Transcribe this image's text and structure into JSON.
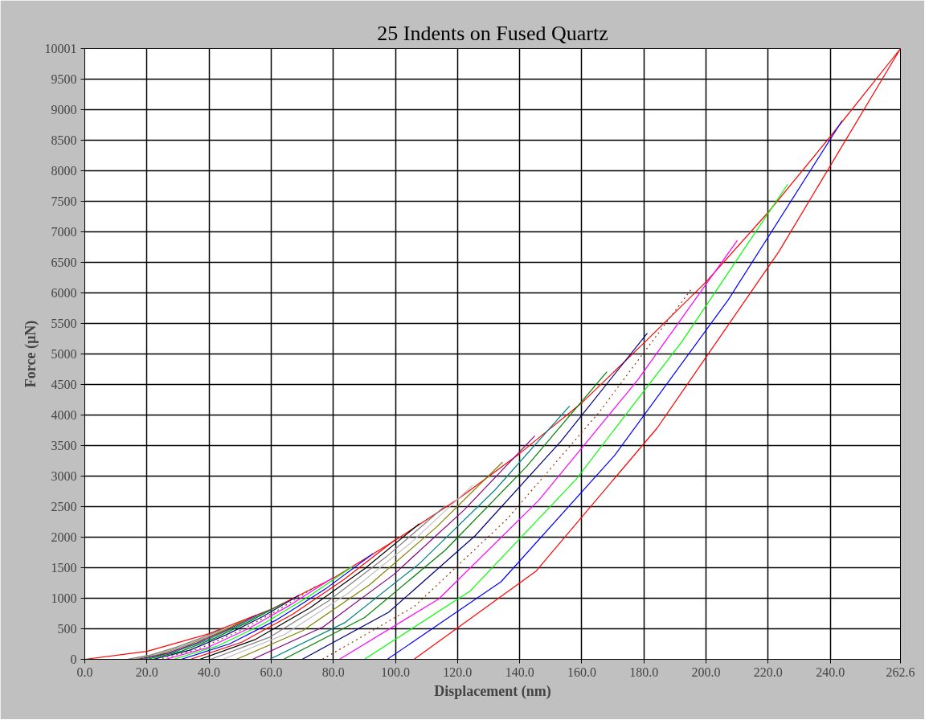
{
  "chart_data": {
    "type": "line",
    "title": "25 Indents on Fused Quartz",
    "xlabel": "Displacement (nm)",
    "ylabel": "Force (µN)",
    "xlim": [
      0,
      262.6
    ],
    "ylim": [
      0,
      10001
    ],
    "xticks": [
      {
        "value": 0,
        "label": "0.0"
      },
      {
        "value": 20,
        "label": "20.0"
      },
      {
        "value": 40,
        "label": "40.0"
      },
      {
        "value": 60,
        "label": "60.0"
      },
      {
        "value": 80,
        "label": "80.0"
      },
      {
        "value": 100,
        "label": "100.0"
      },
      {
        "value": 120,
        "label": "120.0"
      },
      {
        "value": 140,
        "label": "140.0"
      },
      {
        "value": 160,
        "label": "160.0"
      },
      {
        "value": 180,
        "label": "180.0"
      },
      {
        "value": 200,
        "label": "200.0"
      },
      {
        "value": 220,
        "label": "220.0"
      },
      {
        "value": 240,
        "label": "240.0"
      },
      262.6
    ],
    "yticks": [
      0,
      500,
      1000,
      1500,
      2000,
      2500,
      3000,
      3500,
      4000,
      4500,
      5000,
      5500,
      6000,
      6500,
      7000,
      7500,
      8000,
      8500,
      9000,
      9500,
      10001
    ],
    "grid": true,
    "marker": "none",
    "series": [
      {
        "color": "#ff0000",
        "line_style": "solid",
        "x": [
          0,
          20,
          40,
          60,
          80,
          100,
          120,
          140,
          160,
          180,
          200,
          220,
          240,
          262.6,
          223.5,
          184.3,
          145.2,
          106
        ],
        "values": [
          0,
          130,
          420,
          820,
          1330,
          1950,
          2620,
          3370,
          4200,
          5180,
          6180,
          7320,
          8560,
          10001,
          6680,
          3790,
          1440,
          0
        ]
      },
      {
        "color": "#0000ff",
        "line_style": "solid",
        "x": [
          243.8,
          207.2,
          170.6,
          134.0,
          97.4
        ],
        "values": [
          8820,
          5890,
          3340,
          1270,
          0
        ]
      },
      {
        "color": "#00ff00",
        "line_style": "solid",
        "x": [
          226.3,
          192.2,
          158.2,
          124.1,
          90
        ],
        "values": [
          7780,
          5200,
          2950,
          1120,
          0
        ]
      },
      {
        "color": "#ff00ff",
        "line_style": "solid",
        "x": [
          210.1,
          178.1,
          146.1,
          114.0,
          82
        ],
        "values": [
          6860,
          4580,
          2600,
          990,
          0
        ]
      },
      {
        "color": "#993300",
        "line_style": "dotted",
        "x": [
          195.1,
          165.5,
          135.8,
          106.2,
          76.5
        ],
        "values": [
          6050,
          4040,
          2290,
          870,
          0
        ]
      },
      {
        "color": "#000080",
        "line_style": "solid",
        "x": [
          181.1,
          153.3,
          125.6,
          97.8,
          70
        ],
        "values": [
          5340,
          3570,
          2020,
          770,
          0
        ]
      },
      {
        "color": "#008000",
        "line_style": "solid",
        "x": [
          168.1,
          142.1,
          116.1,
          90.0,
          64
        ],
        "values": [
          4710,
          3150,
          1790,
          680,
          0
        ]
      },
      {
        "color": "#008080",
        "line_style": "solid",
        "x": [
          156.1,
          132.0,
          107.8,
          83.7,
          59.5
        ],
        "values": [
          4150,
          2770,
          1570,
          600,
          0
        ]
      },
      {
        "color": "#800080",
        "line_style": "solid",
        "x": [
          144.9,
          122.2,
          99.5,
          76.7,
          54
        ],
        "values": [
          3660,
          2450,
          1390,
          530,
          0
        ]
      },
      {
        "color": "#808000",
        "line_style": "solid",
        "x": [
          134.5,
          113.1,
          91.7,
          70.2,
          48.8
        ],
        "values": [
          3230,
          2160,
          1220,
          470,
          0
        ]
      },
      {
        "color": "#c0c0c0",
        "line_style": "solid",
        "x": [
          124.9,
          104.8,
          84.7,
          64.5,
          44.4
        ],
        "values": [
          2850,
          1900,
          1080,
          410,
          0
        ]
      },
      {
        "color": "#808080",
        "line_style": "solid",
        "x": [
          116.0,
          97.1,
          78.3,
          59.4,
          40.5
        ],
        "values": [
          2510,
          1680,
          950,
          360,
          0
        ]
      },
      {
        "color": "#000000",
        "line_style": "solid",
        "x": [
          107.7,
          90.0,
          72.4,
          54.7,
          37
        ],
        "values": [
          2220,
          1480,
          840,
          320,
          0
        ]
      },
      {
        "color": "#ff0000",
        "line_style": "solid",
        "x": [
          100.0,
          83.5,
          67.0,
          50.5,
          34
        ],
        "values": [
          1960,
          1310,
          740,
          280,
          0
        ]
      },
      {
        "color": "#0000ff",
        "line_style": "solid",
        "x": [
          92.8,
          77.4,
          61.9,
          46.5,
          31
        ],
        "values": [
          1730,
          1150,
          650,
          250,
          0
        ]
      },
      {
        "color": "#00ff00",
        "line_style": "solid",
        "x": [
          86.2,
          71.8,
          57.4,
          42.9,
          28.5
        ],
        "values": [
          1520,
          1020,
          580,
          220,
          0
        ]
      },
      {
        "color": "#ff00ff",
        "line_style": "solid",
        "x": [
          80.0,
          66.5,
          53.0,
          39.5,
          26
        ],
        "values": [
          1340,
          900,
          510,
          190,
          0
        ]
      },
      {
        "color": "#993300",
        "line_style": "dotted",
        "x": [
          74.3,
          61.7,
          49.2,
          36.6,
          24
        ],
        "values": [
          1190,
          790,
          450,
          170,
          0
        ]
      },
      {
        "color": "#000080",
        "line_style": "solid",
        "x": [
          69.0,
          57.3,
          45.5,
          33.8,
          22
        ],
        "values": [
          1050,
          700,
          400,
          150,
          0
        ]
      },
      {
        "color": "#008000",
        "line_style": "solid",
        "x": [
          64.0,
          53.0,
          42.0,
          31.0,
          20
        ],
        "values": [
          920,
          620,
          350,
          130,
          0
        ]
      },
      {
        "color": "#008080",
        "line_style": "solid",
        "x": [
          59.5,
          48.8,
          39.0,
          28.8,
          18.5
        ],
        "values": [
          810,
          540,
          310,
          120,
          0
        ]
      },
      {
        "color": "#800080",
        "line_style": "solid",
        "x": [
          55.2,
          45.7,
          36.1,
          26.6,
          17
        ],
        "values": [
          720,
          480,
          270,
          100,
          0
        ]
      },
      {
        "color": "#808000",
        "line_style": "solid",
        "x": [
          51.2,
          42.3,
          33.4,
          24.4,
          15.5
        ],
        "values": [
          630,
          420,
          240,
          90,
          0
        ]
      },
      {
        "color": "#c0c0c0",
        "line_style": "solid",
        "x": [
          47.6,
          39.3,
          31.1,
          22.8,
          14.5
        ],
        "values": [
          560,
          370,
          210,
          80,
          0
        ]
      },
      {
        "color": "#808080",
        "line_style": "solid",
        "x": [
          44.2,
          36.5,
          28.9,
          21.2,
          13.5
        ],
        "values": [
          490,
          330,
          190,
          70,
          0
        ]
      }
    ]
  }
}
